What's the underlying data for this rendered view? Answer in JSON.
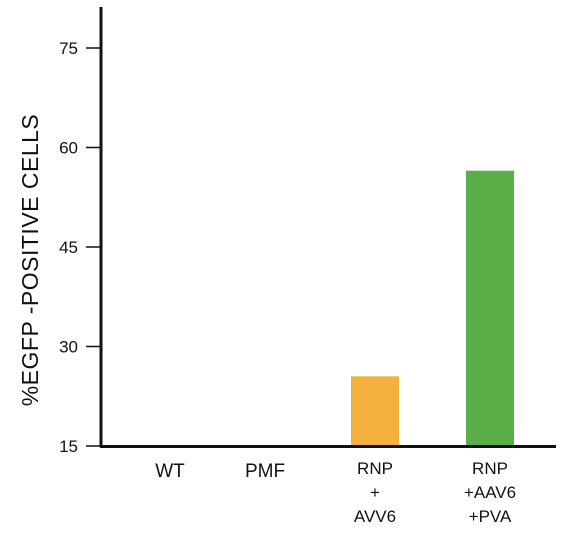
{
  "chart_data": {
    "type": "bar",
    "title": "",
    "xlabel": "",
    "ylabel": "%EGFP -POSITIVE CELLS",
    "ylim": [
      15,
      80
    ],
    "yticks": [
      "15",
      "30",
      "45",
      "60",
      "75"
    ],
    "grid": false,
    "legend": "none",
    "categories": [
      [
        "WT"
      ],
      [
        "PMF"
      ],
      [
        "RNP",
        "+",
        "AVV6"
      ],
      [
        "RNP",
        "+AAV6",
        "+PVA"
      ]
    ],
    "values": [
      15,
      15,
      25.5,
      56.5
    ],
    "colors": [
      "#f5b13d",
      "#f5b13d",
      "#f5b13d",
      "#5aae47"
    ]
  }
}
